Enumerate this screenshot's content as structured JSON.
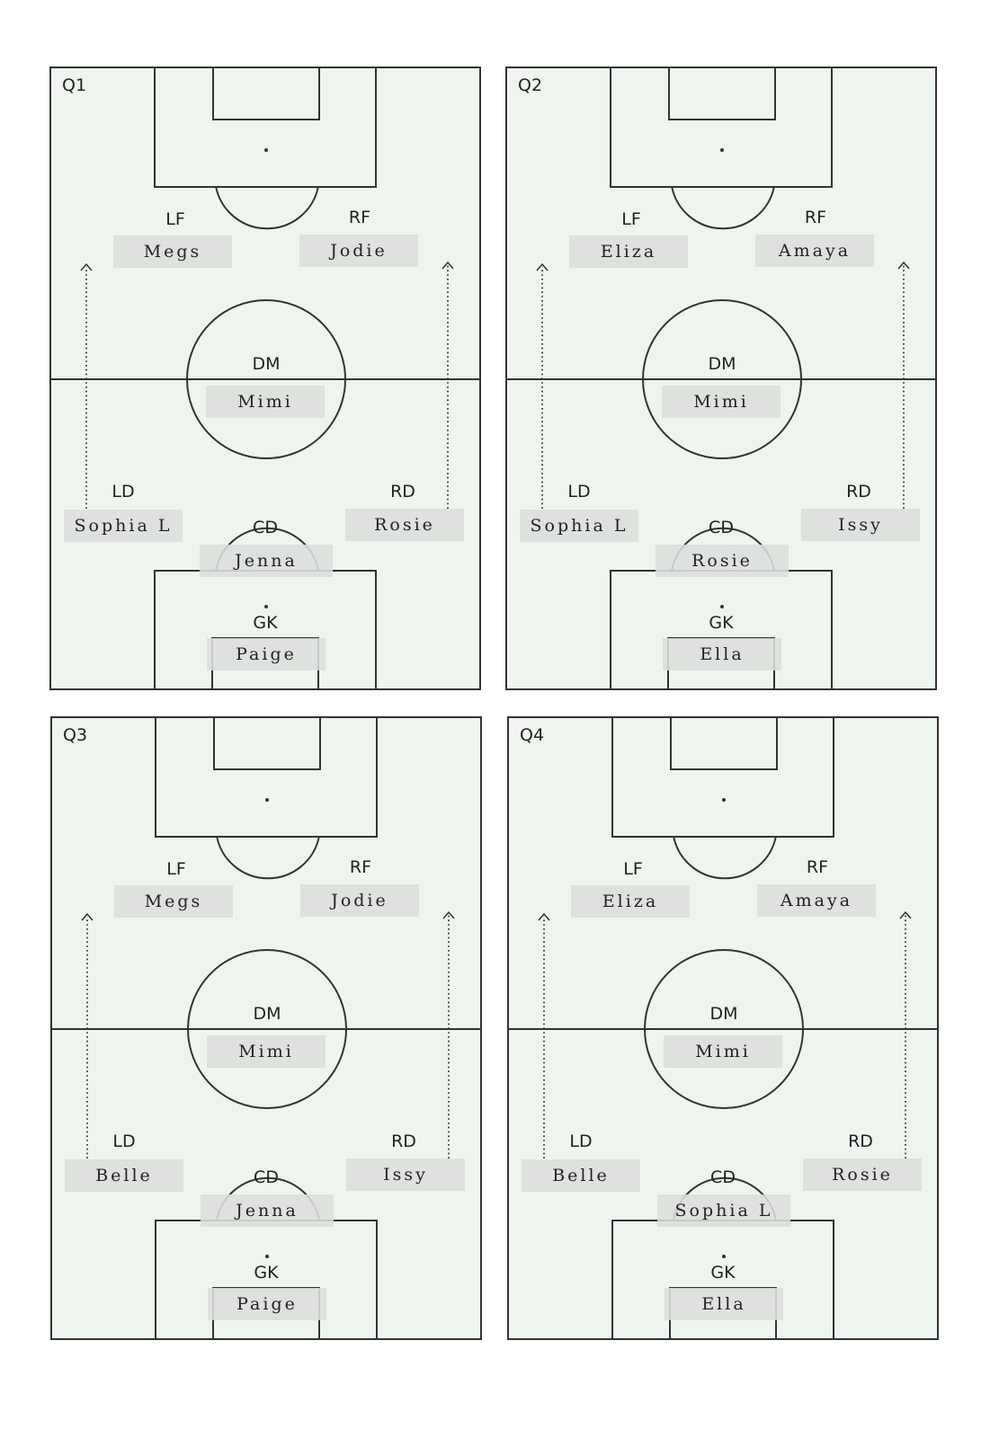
{
  "colors": {
    "pitch": "#eef5ee",
    "line": "#333333",
    "card": "#dcdedc",
    "text": "#222222"
  },
  "icons": {
    "run_arrow": "dotted-up-arrow-icon"
  },
  "quarters": [
    {
      "label": "Q1",
      "positions": {
        "lf": {
          "label": "LF",
          "player": "Megs"
        },
        "rf": {
          "label": "RF",
          "player": "Jodie"
        },
        "dm": {
          "label": "DM",
          "player": "Mimi"
        },
        "ld": {
          "label": "LD",
          "player": "Sophia L"
        },
        "rd": {
          "label": "RD",
          "player": "Rosie"
        },
        "cd": {
          "label": "CD",
          "player": "Jenna"
        },
        "gk": {
          "label": "GK",
          "player": "Paige"
        }
      }
    },
    {
      "label": "Q2",
      "positions": {
        "lf": {
          "label": "LF",
          "player": "Eliza"
        },
        "rf": {
          "label": "RF",
          "player": "Amaya"
        },
        "dm": {
          "label": "DM",
          "player": "Mimi"
        },
        "ld": {
          "label": "LD",
          "player": "Sophia L"
        },
        "rd": {
          "label": "RD",
          "player": "Issy"
        },
        "cd": {
          "label": "CD",
          "player": "Rosie"
        },
        "gk": {
          "label": "GK",
          "player": "Ella"
        }
      }
    },
    {
      "label": "Q3",
      "positions": {
        "lf": {
          "label": "LF",
          "player": "Megs"
        },
        "rf": {
          "label": "RF",
          "player": "Jodie"
        },
        "dm": {
          "label": "DM",
          "player": "Mimi"
        },
        "ld": {
          "label": "LD",
          "player": "Belle"
        },
        "rd": {
          "label": "RD",
          "player": "Issy"
        },
        "cd": {
          "label": "CD",
          "player": "Jenna"
        },
        "gk": {
          "label": "GK",
          "player": "Paige"
        }
      }
    },
    {
      "label": "Q4",
      "positions": {
        "lf": {
          "label": "LF",
          "player": "Eliza"
        },
        "rf": {
          "label": "RF",
          "player": "Amaya"
        },
        "dm": {
          "label": "DM",
          "player": "Mimi"
        },
        "ld": {
          "label": "LD",
          "player": "Belle"
        },
        "rd": {
          "label": "RD",
          "player": "Rosie"
        },
        "cd": {
          "label": "CD",
          "player": "Sophia L"
        },
        "gk": {
          "label": "GK",
          "player": "Ella"
        }
      }
    }
  ]
}
